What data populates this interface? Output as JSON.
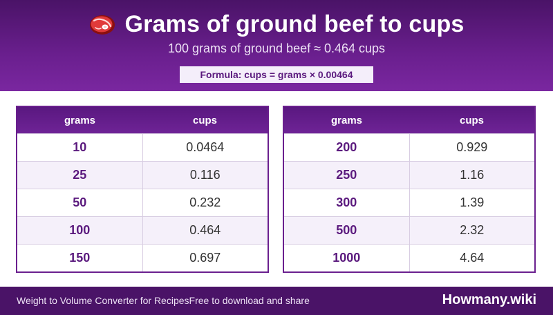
{
  "header": {
    "title": "Grams of ground beef to cups",
    "subtitle": "100 grams of ground beef ≈ 0.464 cups",
    "formula": "Formula: cups = grams × 0.00464",
    "icon": "steak-icon"
  },
  "tables": [
    {
      "headers": {
        "grams": "grams",
        "cups": "cups"
      },
      "rows": [
        {
          "grams": "10",
          "cups": "0.0464"
        },
        {
          "grams": "25",
          "cups": "0.116"
        },
        {
          "grams": "50",
          "cups": "0.232"
        },
        {
          "grams": "100",
          "cups": "0.464"
        },
        {
          "grams": "150",
          "cups": "0.697"
        }
      ]
    },
    {
      "headers": {
        "grams": "grams",
        "cups": "cups"
      },
      "rows": [
        {
          "grams": "200",
          "cups": "0.929"
        },
        {
          "grams": "250",
          "cups": "1.16"
        },
        {
          "grams": "300",
          "cups": "1.39"
        },
        {
          "grams": "500",
          "cups": "2.32"
        },
        {
          "grams": "1000",
          "cups": "4.64"
        }
      ]
    }
  ],
  "footer": {
    "left_text": "Weight to Volume Converter for Recipes",
    "middle_text": "Free to download and share",
    "brand": "Howmany.wiki"
  },
  "colors": {
    "brand_purple": "#6a1f8e",
    "dark_purple": "#4a1367",
    "row_alt": "#f5f0fa"
  }
}
